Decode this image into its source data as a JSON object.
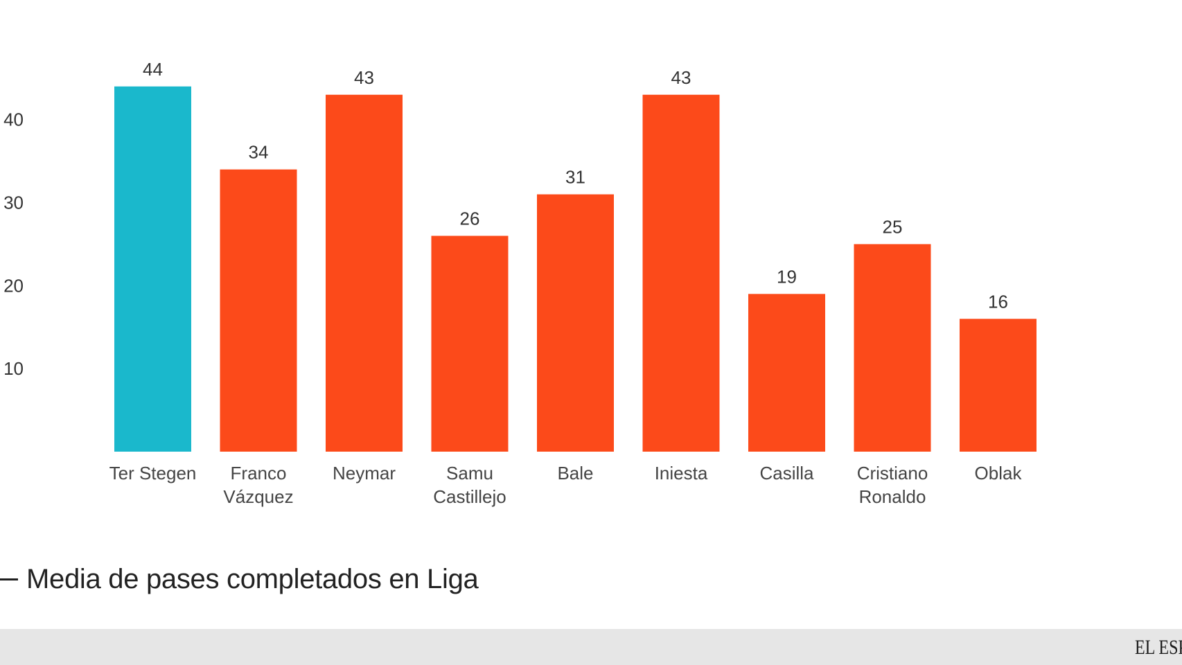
{
  "chart_data": {
    "type": "bar",
    "categories": [
      "Ter Stegen",
      "Franco\nVázquez",
      "Neymar",
      "Samu\nCastillejo",
      "Bale",
      "Iniesta",
      "Casilla",
      "Cristiano\nRonaldo",
      "Oblak"
    ],
    "series": [
      {
        "name": "Media de pases completados en Liga",
        "values": [
          44,
          34,
          43,
          26,
          31,
          43,
          19,
          25,
          16
        ]
      }
    ],
    "data_labels": [
      "44",
      "34",
      "43",
      "26",
      "31",
      "43",
      "19",
      "25",
      "16"
    ],
    "y_ticks": [
      10,
      20,
      30,
      40
    ],
    "ylim": [
      0,
      45.4
    ],
    "grid": false,
    "legend_position": "bottom-left",
    "colors": {
      "highlight": "#1ab8cc",
      "default": "#fc4a1a"
    },
    "highlight_index": 0
  },
  "footer": {
    "brand": "EL ESPAÑOL"
  }
}
